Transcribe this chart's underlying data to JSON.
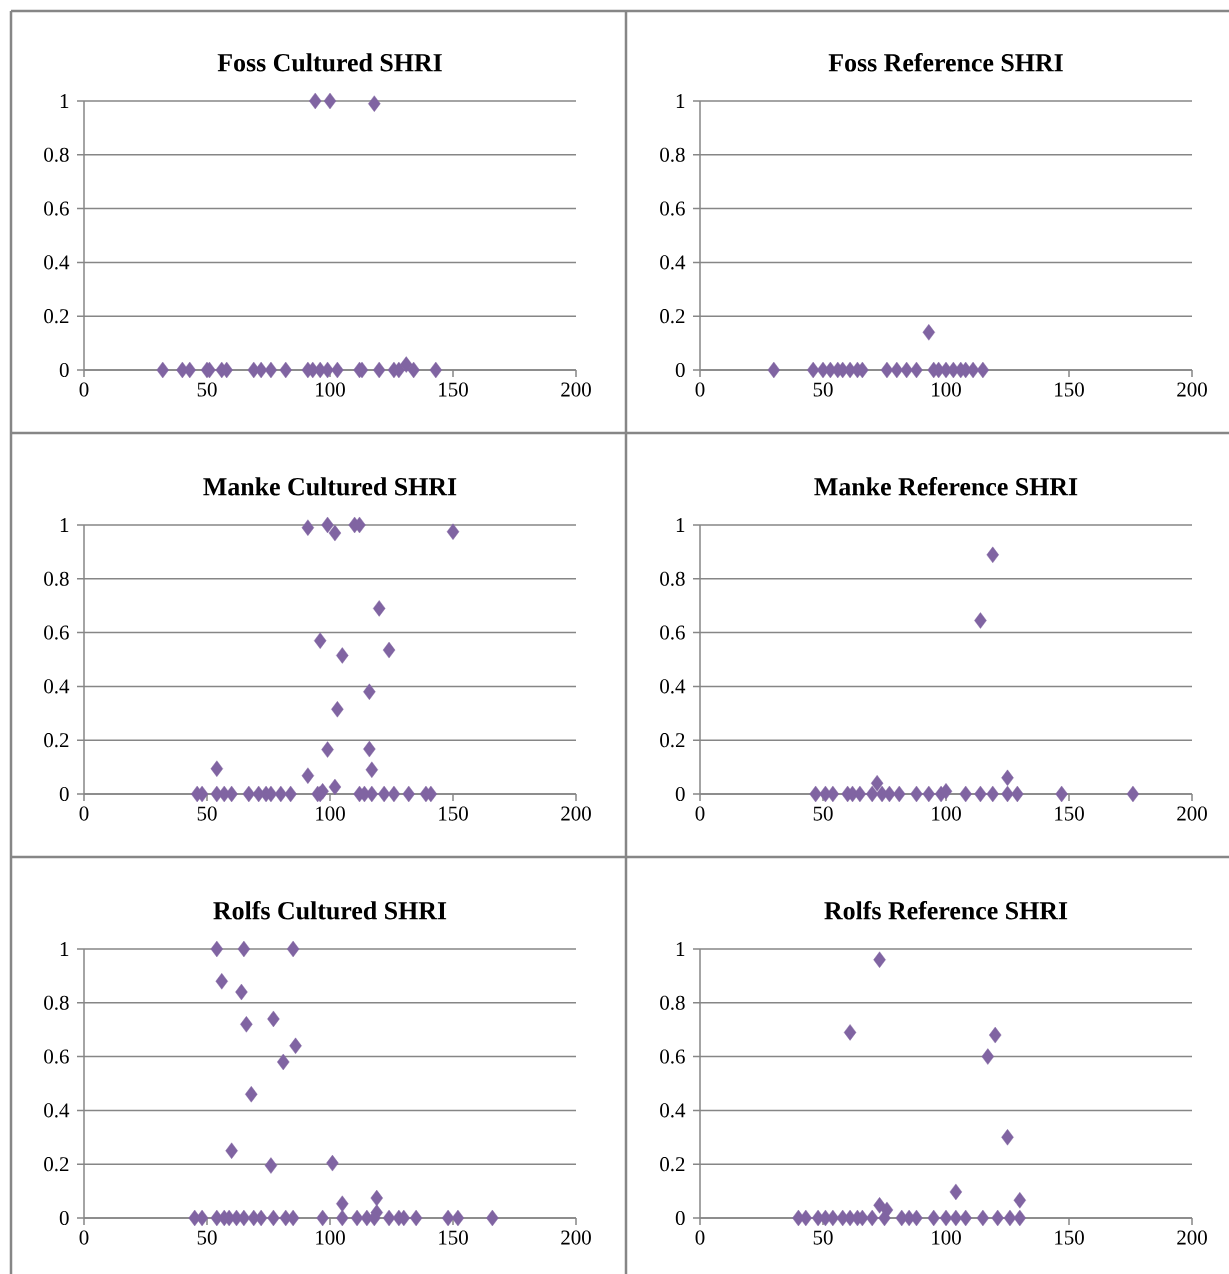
{
  "chart_data": [
    {
      "type": "scatter",
      "title": "Foss Cultured SHRI",
      "color": "#8064a2",
      "marker": "diamond",
      "grid": "y",
      "xlim": [
        0,
        200
      ],
      "ylim": [
        0,
        1
      ],
      "xticks": [
        0,
        50,
        100,
        150,
        200
      ],
      "yticks": [
        0,
        0.2,
        0.4,
        0.6,
        0.8,
        1
      ],
      "x": [
        94,
        100,
        118,
        32,
        40,
        43,
        50,
        51,
        56,
        58,
        69,
        72,
        76,
        82,
        91,
        93,
        96,
        99,
        103,
        112,
        113,
        120,
        126,
        128,
        131,
        134,
        143
      ],
      "values": [
        1,
        1,
        0.99,
        0,
        0,
        0,
        0,
        0,
        0,
        0,
        0,
        0,
        0,
        0,
        0,
        0,
        0,
        0,
        0,
        0,
        0,
        0,
        0,
        0,
        0.02,
        0,
        0
      ]
    },
    {
      "type": "scatter",
      "title": "Foss Reference SHRI",
      "color": "#8064a2",
      "marker": "diamond",
      "grid": "y",
      "xlim": [
        0,
        200
      ],
      "ylim": [
        0,
        1
      ],
      "xticks": [
        0,
        50,
        100,
        150,
        200
      ],
      "yticks": [
        0,
        0.2,
        0.4,
        0.6,
        0.8,
        1
      ],
      "x": [
        93,
        30,
        46,
        50,
        53,
        56,
        58,
        61,
        64,
        66,
        76,
        80,
        84,
        88,
        95,
        97,
        100,
        103,
        106,
        108,
        111,
        115
      ],
      "values": [
        0.14,
        0,
        0,
        0,
        0,
        0,
        0,
        0,
        0,
        0,
        0,
        0,
        0,
        0,
        0,
        0,
        0,
        0,
        0,
        0,
        0,
        0
      ]
    },
    {
      "type": "scatter",
      "title": "Manke Cultured SHRI",
      "color": "#8064a2",
      "marker": "diamond",
      "grid": "y",
      "xlim": [
        0,
        200
      ],
      "ylim": [
        0,
        1
      ],
      "xticks": [
        0,
        50,
        100,
        150,
        200
      ],
      "yticks": [
        0,
        0.2,
        0.4,
        0.6,
        0.8,
        1
      ],
      "x": [
        91,
        99,
        102,
        110,
        112,
        150,
        120,
        96,
        105,
        124,
        116,
        103,
        99,
        116,
        54,
        117,
        91,
        102,
        96,
        97,
        46,
        48,
        54,
        57,
        60,
        67,
        71,
        74,
        76,
        80,
        84,
        95,
        112,
        114,
        117,
        122,
        126,
        132,
        139,
        141
      ],
      "values": [
        0.99,
        1,
        0.97,
        1,
        1,
        0.975,
        0.69,
        0.57,
        0.515,
        0.535,
        0.38,
        0.315,
        0.165,
        0.167,
        0.094,
        0.09,
        0.068,
        0.026,
        0,
        0.01,
        0,
        0,
        0,
        0,
        0,
        0,
        0,
        0,
        0,
        0,
        0,
        0,
        0,
        0,
        0,
        0,
        0,
        0,
        0,
        0
      ]
    },
    {
      "type": "scatter",
      "title": "Manke Reference SHRI",
      "color": "#8064a2",
      "marker": "diamond",
      "grid": "y",
      "xlim": [
        0,
        200
      ],
      "ylim": [
        0,
        1
      ],
      "xticks": [
        0,
        50,
        100,
        150,
        200
      ],
      "yticks": [
        0,
        0.2,
        0.4,
        0.6,
        0.8,
        1
      ],
      "x": [
        119,
        114,
        125,
        72,
        47,
        51,
        54,
        60,
        62,
        65,
        70,
        74,
        77,
        81,
        88,
        93,
        98,
        100,
        108,
        114,
        119,
        125,
        129,
        147,
        176
      ],
      "values": [
        0.889,
        0.645,
        0.06,
        0.04,
        0,
        0,
        0,
        0,
        0,
        0,
        0,
        0,
        0,
        0,
        0,
        0,
        0,
        0.01,
        0,
        0,
        0,
        0,
        0,
        0,
        0
      ]
    },
    {
      "type": "scatter",
      "title": "Rolfs Cultured SHRI",
      "color": "#8064a2",
      "marker": "diamond",
      "grid": "y",
      "xlim": [
        0,
        200
      ],
      "ylim": [
        0,
        1
      ],
      "xticks": [
        0,
        50,
        100,
        150,
        200
      ],
      "yticks": [
        0,
        0.2,
        0.4,
        0.6,
        0.8,
        1
      ],
      "x": [
        54,
        65,
        85,
        56,
        64,
        66,
        77,
        86,
        81,
        68,
        60,
        76,
        101,
        105,
        119,
        119,
        45,
        48,
        54,
        57,
        59,
        62,
        65,
        69,
        72,
        77,
        82,
        85,
        97,
        105,
        111,
        115,
        118,
        124,
        128,
        130,
        135,
        148,
        152,
        166
      ],
      "values": [
        1,
        1,
        1,
        0.88,
        0.84,
        0.72,
        0.74,
        0.64,
        0.58,
        0.46,
        0.25,
        0.195,
        0.204,
        0.053,
        0.074,
        0.02,
        0,
        0,
        0,
        0,
        0,
        0,
        0,
        0,
        0,
        0,
        0,
        0,
        0,
        0,
        0,
        0,
        0,
        0,
        0,
        0,
        0,
        0,
        0,
        0
      ]
    },
    {
      "type": "scatter",
      "title": "Rolfs Reference SHRI",
      "color": "#8064a2",
      "marker": "diamond",
      "grid": "y",
      "xlim": [
        0,
        200
      ],
      "ylim": [
        0,
        1
      ],
      "xticks": [
        0,
        50,
        100,
        150,
        200
      ],
      "yticks": [
        0,
        0.2,
        0.4,
        0.6,
        0.8,
        1
      ],
      "x": [
        73,
        61,
        120,
        117,
        125,
        104,
        130,
        73,
        76,
        40,
        43,
        48,
        51,
        54,
        58,
        61,
        64,
        66,
        70,
        75,
        82,
        85,
        88,
        95,
        100,
        104,
        108,
        115,
        121,
        126,
        130
      ],
      "values": [
        0.96,
        0.69,
        0.68,
        0.6,
        0.3,
        0.097,
        0.066,
        0.047,
        0.03,
        0,
        0,
        0,
        0,
        0,
        0,
        0,
        0,
        0,
        0,
        0,
        0,
        0,
        0,
        0,
        0,
        0,
        0,
        0,
        0,
        0,
        0
      ]
    }
  ]
}
